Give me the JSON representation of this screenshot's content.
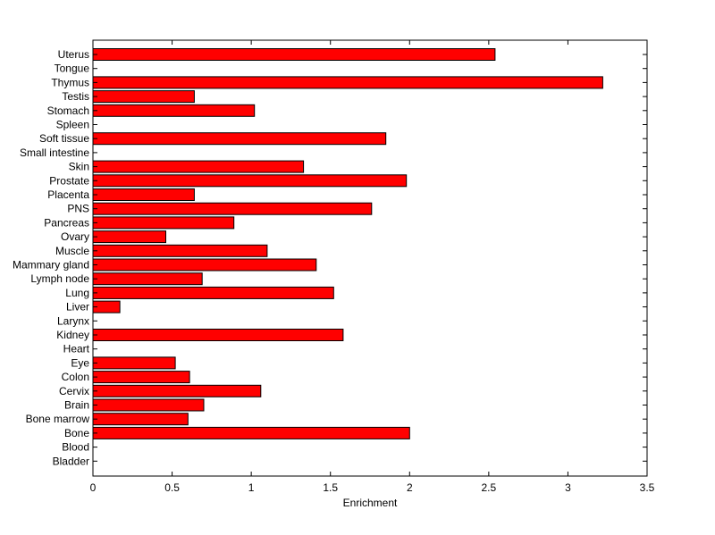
{
  "chart_data": {
    "type": "bar",
    "orientation": "horizontal",
    "xlabel": "Enrichment",
    "ylabel": "",
    "title": "",
    "xlim": [
      0,
      3.5
    ],
    "xticks": [
      0,
      0.5,
      1,
      1.5,
      2,
      2.5,
      3,
      3.5
    ],
    "xtick_labels": [
      "0",
      "0.5",
      "1",
      "1.5",
      "2",
      "2.5",
      "3",
      "3.5"
    ],
    "grid": false,
    "bar_color": "#ff0000",
    "bar_edge_color": "#000000",
    "categories": [
      "Uterus",
      "Tongue",
      "Thymus",
      "Testis",
      "Stomach",
      "Spleen",
      "Soft tissue",
      "Small intestine",
      "Skin",
      "Prostate",
      "Placenta",
      "PNS",
      "Pancreas",
      "Ovary",
      "Muscle",
      "Mammary gland",
      "Lymph node",
      "Lung",
      "Liver",
      "Larynx",
      "Kidney",
      "Heart",
      "Eye",
      "Colon",
      "Cervix",
      "Brain",
      "Bone marrow",
      "Bone",
      "Blood",
      "Bladder"
    ],
    "values": [
      2.54,
      0,
      3.22,
      0.64,
      1.02,
      0,
      1.85,
      0,
      1.33,
      1.98,
      0.64,
      1.76,
      0.89,
      0.46,
      1.1,
      1.41,
      0.69,
      1.52,
      0.17,
      0,
      1.58,
      0,
      0.52,
      0.61,
      1.06,
      0.7,
      0.6,
      2.0,
      0,
      0
    ]
  }
}
